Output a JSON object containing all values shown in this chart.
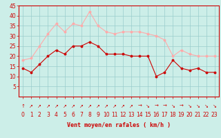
{
  "hours": [
    0,
    1,
    2,
    3,
    4,
    5,
    6,
    7,
    8,
    9,
    10,
    11,
    12,
    13,
    14,
    15,
    16,
    17,
    18,
    19,
    20,
    21,
    22,
    23
  ],
  "wind_avg": [
    14,
    12,
    16,
    20,
    23,
    21,
    25,
    25,
    27,
    25,
    21,
    21,
    21,
    20,
    20,
    20,
    10,
    12,
    18,
    14,
    13,
    14,
    12,
    12
  ],
  "wind_gust": [
    18,
    19,
    25,
    31,
    36,
    32,
    36,
    35,
    42,
    35,
    32,
    31,
    32,
    32,
    32,
    31,
    30,
    28,
    20,
    23,
    21,
    20,
    20,
    20
  ],
  "avg_color": "#cc0000",
  "gust_color": "#ffaaaa",
  "bg_color": "#cceee8",
  "grid_color": "#99cccc",
  "xlabel": "Vent moyen/en rafales ( km/h )",
  "xlabel_color": "#cc0000",
  "ylim": [
    0,
    45
  ],
  "yticks": [
    5,
    10,
    15,
    20,
    25,
    30,
    35,
    40,
    45
  ],
  "tick_color": "#cc0000",
  "spine_color": "#cc0000",
  "axis_fontsize": 5.5,
  "label_fontsize": 6.0,
  "arrow_symbols": [
    "↑",
    "↗",
    "↗",
    "↗",
    "↗",
    "↗",
    "↗",
    "↗",
    "↗",
    "↗",
    "↗",
    "↗",
    "↗",
    "↗",
    "→",
    "↘",
    "→",
    "→",
    "↘",
    "→",
    "↘",
    "↘",
    "↘",
    "↘"
  ]
}
